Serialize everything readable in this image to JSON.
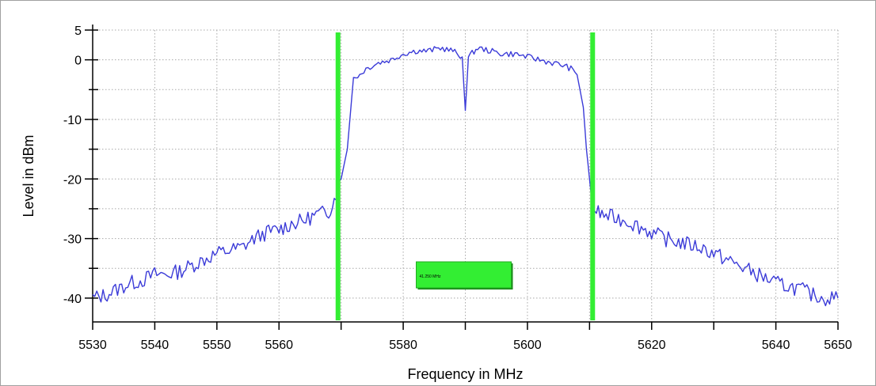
{
  "chart_data": {
    "type": "line",
    "xlabel": "Frequency in MHz",
    "ylabel": "Level in dBm",
    "xlim": [
      5530,
      5650
    ],
    "ylim": [
      -44,
      5
    ],
    "x_ticks": [
      5530,
      5540,
      5550,
      5560,
      5570,
      5580,
      5590,
      5600,
      5610,
      5620,
      5630,
      5640,
      5650
    ],
    "x_tick_labels": [
      "5530",
      "5540",
      "5550",
      "5560",
      "",
      "5580",
      "",
      "5600",
      "",
      "5620",
      "",
      "5640",
      "5650"
    ],
    "y_major_ticks": [
      5,
      0,
      -10,
      -20,
      -30,
      -40
    ],
    "y_tick_labels": [
      "5",
      "0",
      "-10",
      "-20",
      "-30",
      "-40"
    ],
    "y_minor_ticks": [
      -5,
      -15,
      -25,
      -35
    ],
    "grid": true,
    "legend": "none",
    "colors": {
      "trace": "#3b3bd8",
      "marker": "#33ee33",
      "grid": "#a8a8a8"
    },
    "series": [
      {
        "x": [
          5530,
          5532,
          5534,
          5536,
          5538,
          5540,
          5542,
          5544,
          5546,
          5548,
          5550,
          5552,
          5554,
          5556,
          5558,
          5560,
          5562,
          5564,
          5566,
          5568,
          5569.5,
          5570,
          5571,
          5572,
          5573,
          5574,
          5575,
          5576,
          5578,
          5580,
          5582,
          5584,
          5586,
          5588,
          5589.5,
          5590,
          5590.5,
          5592,
          5594,
          5596,
          5598,
          5600,
          5602,
          5604,
          5606,
          5607,
          5608,
          5609,
          5609.5,
          5610,
          5610.5,
          5612,
          5614,
          5616,
          5618,
          5620,
          5622,
          5624,
          5626,
          5628,
          5630,
          5632,
          5634,
          5636,
          5638,
          5640,
          5642,
          5644,
          5646,
          5648,
          5650
        ],
        "y": [
          -40,
          -39.5,
          -38.5,
          -37.5,
          -37,
          -36,
          -36,
          -35.5,
          -34.5,
          -33.5,
          -32.5,
          -32,
          -31.5,
          -30,
          -29,
          -28.5,
          -27.5,
          -27,
          -26,
          -25.5,
          -22,
          -20,
          -15,
          -3,
          -2.5,
          -1.5,
          -1,
          -0.5,
          0,
          1,
          1.5,
          1.5,
          2,
          1.5,
          0.5,
          -8.5,
          0.5,
          2,
          1.5,
          1,
          1,
          0.5,
          0,
          -0.5,
          -1,
          -1.5,
          -2.5,
          -8,
          -15,
          -20,
          -25,
          -26,
          -26.5,
          -27,
          -28,
          -29,
          -30,
          -30.5,
          -31,
          -31.5,
          -32.5,
          -33.5,
          -34.5,
          -35.5,
          -36.5,
          -37.5,
          -38,
          -38.5,
          -39.5,
          -40,
          -40
        ]
      }
    ],
    "markers": {
      "lines_x": [
        5569.5,
        5610.5
      ],
      "span_label": "41.250 MHz"
    }
  }
}
